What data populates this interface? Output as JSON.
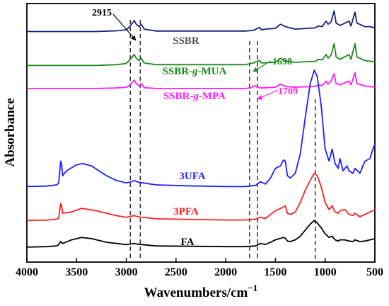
{
  "chart_data": {
    "type": "line",
    "title": "",
    "xlabel": "Wavenumbers/cm",
    "xlabel_sup": "−1",
    "ylabel": "Absorbance",
    "xlim": [
      4000,
      500
    ],
    "x_reversed": true,
    "y_ticks_shown": false,
    "grid": false,
    "x_ticks": [
      4000,
      3500,
      3000,
      2500,
      2000,
      1500,
      1000,
      500
    ],
    "reference_lines": [
      2960,
      2860,
      1760,
      1680,
      1100
    ],
    "annotations": [
      {
        "text": "2915",
        "x": 2915,
        "color": "#000000"
      },
      {
        "text": "1698",
        "x": 1698,
        "color": "#1a8a1a"
      },
      {
        "text": "1709",
        "x": 1709,
        "color": "#ff19ff"
      }
    ],
    "series": [
      {
        "name": "SSBR",
        "color": "#1a1f7a",
        "points": [
          [
            4000,
            0.905
          ],
          [
            3300,
            0.905
          ],
          [
            3100,
            0.908
          ],
          [
            3000,
            0.912
          ],
          [
            2960,
            0.928
          ],
          [
            2920,
            0.95
          ],
          [
            2900,
            0.935
          ],
          [
            2870,
            0.925
          ],
          [
            2850,
            0.935
          ],
          [
            2820,
            0.915
          ],
          [
            2700,
            0.907
          ],
          [
            1800,
            0.907
          ],
          [
            1720,
            0.91
          ],
          [
            1660,
            0.922
          ],
          [
            1640,
            0.912
          ],
          [
            1600,
            0.915
          ],
          [
            1500,
            0.918
          ],
          [
            1450,
            0.935
          ],
          [
            1400,
            0.925
          ],
          [
            1300,
            0.915
          ],
          [
            1100,
            0.92
          ],
          [
            1070,
            0.928
          ],
          [
            1030,
            0.925
          ],
          [
            990,
            0.948
          ],
          [
            970,
            0.935
          ],
          [
            940,
            0.945
          ],
          [
            910,
            0.99
          ],
          [
            890,
            0.94
          ],
          [
            850,
            0.93
          ],
          [
            760,
            0.948
          ],
          [
            740,
            0.928
          ],
          [
            700,
            0.985
          ],
          [
            680,
            0.94
          ],
          [
            600,
            0.925
          ],
          [
            550,
            0.925
          ],
          [
            500,
            0.92
          ]
        ]
      },
      {
        "name": "SSBR-g-MUA",
        "color": "#1a8a1a",
        "points": [
          [
            4000,
            0.765
          ],
          [
            3300,
            0.765
          ],
          [
            3100,
            0.768
          ],
          [
            3000,
            0.773
          ],
          [
            2960,
            0.79
          ],
          [
            2920,
            0.81
          ],
          [
            2900,
            0.795
          ],
          [
            2870,
            0.785
          ],
          [
            2850,
            0.795
          ],
          [
            2820,
            0.775
          ],
          [
            2700,
            0.768
          ],
          [
            1800,
            0.768
          ],
          [
            1720,
            0.775
          ],
          [
            1698,
            0.78
          ],
          [
            1660,
            0.785
          ],
          [
            1640,
            0.775
          ],
          [
            1500,
            0.778
          ],
          [
            1450,
            0.795
          ],
          [
            1400,
            0.783
          ],
          [
            1300,
            0.778
          ],
          [
            1100,
            0.782
          ],
          [
            1070,
            0.79
          ],
          [
            1030,
            0.788
          ],
          [
            990,
            0.81
          ],
          [
            970,
            0.795
          ],
          [
            940,
            0.808
          ],
          [
            910,
            0.855
          ],
          [
            890,
            0.8
          ],
          [
            850,
            0.79
          ],
          [
            760,
            0.81
          ],
          [
            740,
            0.79
          ],
          [
            700,
            0.855
          ],
          [
            680,
            0.8
          ],
          [
            600,
            0.785
          ],
          [
            500,
            0.78
          ]
        ]
      },
      {
        "name": "SSBR-g-MPA",
        "color": "#ff19ff",
        "points": [
          [
            4000,
            0.67
          ],
          [
            3300,
            0.67
          ],
          [
            3100,
            0.672
          ],
          [
            3000,
            0.675
          ],
          [
            2960,
            0.685
          ],
          [
            2920,
            0.705
          ],
          [
            2900,
            0.69
          ],
          [
            2870,
            0.68
          ],
          [
            2850,
            0.69
          ],
          [
            2820,
            0.673
          ],
          [
            2700,
            0.67
          ],
          [
            1800,
            0.67
          ],
          [
            1740,
            0.673
          ],
          [
            1709,
            0.682
          ],
          [
            1680,
            0.675
          ],
          [
            1640,
            0.672
          ],
          [
            1500,
            0.675
          ],
          [
            1450,
            0.688
          ],
          [
            1400,
            0.678
          ],
          [
            1300,
            0.675
          ],
          [
            1100,
            0.678
          ],
          [
            1070,
            0.685
          ],
          [
            1030,
            0.682
          ],
          [
            990,
            0.7
          ],
          [
            970,
            0.688
          ],
          [
            940,
            0.7
          ],
          [
            910,
            0.73
          ],
          [
            890,
            0.69
          ],
          [
            850,
            0.685
          ],
          [
            760,
            0.7
          ],
          [
            740,
            0.685
          ],
          [
            700,
            0.735
          ],
          [
            680,
            0.69
          ],
          [
            600,
            0.68
          ],
          [
            500,
            0.675
          ]
        ]
      },
      {
        "name": "3UFA",
        "color": "#1f1fff",
        "points": [
          [
            4000,
            0.265
          ],
          [
            3800,
            0.267
          ],
          [
            3700,
            0.272
          ],
          [
            3680,
            0.28
          ],
          [
            3660,
            0.37
          ],
          [
            3650,
            0.355
          ],
          [
            3640,
            0.31
          ],
          [
            3600,
            0.33
          ],
          [
            3500,
            0.355
          ],
          [
            3440,
            0.36
          ],
          [
            3350,
            0.35
          ],
          [
            3200,
            0.31
          ],
          [
            3100,
            0.29
          ],
          [
            3000,
            0.28
          ],
          [
            2950,
            0.285
          ],
          [
            2920,
            0.29
          ],
          [
            2880,
            0.283
          ],
          [
            2700,
            0.272
          ],
          [
            2400,
            0.268
          ],
          [
            2000,
            0.265
          ],
          [
            1800,
            0.265
          ],
          [
            1700,
            0.27
          ],
          [
            1650,
            0.285
          ],
          [
            1600,
            0.275
          ],
          [
            1550,
            0.3
          ],
          [
            1500,
            0.34
          ],
          [
            1450,
            0.35
          ],
          [
            1420,
            0.375
          ],
          [
            1400,
            0.37
          ],
          [
            1380,
            0.31
          ],
          [
            1350,
            0.3
          ],
          [
            1300,
            0.32
          ],
          [
            1250,
            0.4
          ],
          [
            1200,
            0.55
          ],
          [
            1150,
            0.69
          ],
          [
            1110,
            0.745
          ],
          [
            1080,
            0.72
          ],
          [
            1040,
            0.6
          ],
          [
            1000,
            0.42
          ],
          [
            960,
            0.37
          ],
          [
            930,
            0.42
          ],
          [
            900,
            0.36
          ],
          [
            870,
            0.34
          ],
          [
            850,
            0.38
          ],
          [
            820,
            0.33
          ],
          [
            780,
            0.35
          ],
          [
            760,
            0.33
          ],
          [
            720,
            0.32
          ],
          [
            700,
            0.34
          ],
          [
            650,
            0.32
          ],
          [
            600,
            0.37
          ],
          [
            550,
            0.38
          ],
          [
            520,
            0.42
          ],
          [
            500,
            0.44
          ]
        ]
      },
      {
        "name": "3PFA",
        "color": "#ff1f1f",
        "points": [
          [
            4000,
            0.125
          ],
          [
            3800,
            0.127
          ],
          [
            3700,
            0.13
          ],
          [
            3680,
            0.135
          ],
          [
            3660,
            0.195
          ],
          [
            3650,
            0.185
          ],
          [
            3640,
            0.155
          ],
          [
            3550,
            0.16
          ],
          [
            3450,
            0.175
          ],
          [
            3300,
            0.165
          ],
          [
            3100,
            0.145
          ],
          [
            3000,
            0.138
          ],
          [
            2950,
            0.142
          ],
          [
            2920,
            0.145
          ],
          [
            2880,
            0.14
          ],
          [
            2700,
            0.132
          ],
          [
            2000,
            0.127
          ],
          [
            1800,
            0.127
          ],
          [
            1700,
            0.13
          ],
          [
            1650,
            0.138
          ],
          [
            1600,
            0.133
          ],
          [
            1550,
            0.15
          ],
          [
            1500,
            0.165
          ],
          [
            1420,
            0.18
          ],
          [
            1400,
            0.185
          ],
          [
            1380,
            0.155
          ],
          [
            1350,
            0.15
          ],
          [
            1300,
            0.16
          ],
          [
            1250,
            0.2
          ],
          [
            1200,
            0.25
          ],
          [
            1150,
            0.29
          ],
          [
            1110,
            0.32
          ],
          [
            1080,
            0.31
          ],
          [
            1040,
            0.265
          ],
          [
            1000,
            0.2
          ],
          [
            960,
            0.17
          ],
          [
            930,
            0.185
          ],
          [
            900,
            0.16
          ],
          [
            870,
            0.155
          ],
          [
            850,
            0.165
          ],
          [
            800,
            0.17
          ],
          [
            760,
            0.15
          ],
          [
            720,
            0.145
          ],
          [
            700,
            0.155
          ],
          [
            650,
            0.14
          ],
          [
            600,
            0.15
          ],
          [
            550,
            0.16
          ],
          [
            500,
            0.17
          ]
        ]
      },
      {
        "name": "FA",
        "color": "#000000",
        "points": [
          [
            4000,
            0.015
          ],
          [
            3800,
            0.017
          ],
          [
            3700,
            0.02
          ],
          [
            3680,
            0.025
          ],
          [
            3660,
            0.038
          ],
          [
            3640,
            0.03
          ],
          [
            3550,
            0.045
          ],
          [
            3450,
            0.055
          ],
          [
            3350,
            0.05
          ],
          [
            3200,
            0.035
          ],
          [
            3100,
            0.03
          ],
          [
            3000,
            0.025
          ],
          [
            2950,
            0.028
          ],
          [
            2920,
            0.03
          ],
          [
            2880,
            0.027
          ],
          [
            2700,
            0.02
          ],
          [
            2000,
            0.017
          ],
          [
            1800,
            0.017
          ],
          [
            1700,
            0.02
          ],
          [
            1650,
            0.03
          ],
          [
            1600,
            0.026
          ],
          [
            1550,
            0.035
          ],
          [
            1500,
            0.045
          ],
          [
            1420,
            0.055
          ],
          [
            1400,
            0.052
          ],
          [
            1380,
            0.04
          ],
          [
            1350,
            0.038
          ],
          [
            1300,
            0.045
          ],
          [
            1250,
            0.06
          ],
          [
            1200,
            0.085
          ],
          [
            1150,
            0.11
          ],
          [
            1110,
            0.125
          ],
          [
            1080,
            0.115
          ],
          [
            1040,
            0.095
          ],
          [
            1000,
            0.07
          ],
          [
            960,
            0.055
          ],
          [
            930,
            0.06
          ],
          [
            900,
            0.045
          ],
          [
            870,
            0.04
          ],
          [
            850,
            0.045
          ],
          [
            800,
            0.045
          ],
          [
            760,
            0.04
          ],
          [
            720,
            0.038
          ],
          [
            700,
            0.045
          ],
          [
            650,
            0.038
          ],
          [
            600,
            0.04
          ],
          [
            550,
            0.045
          ],
          [
            500,
            0.05
          ]
        ]
      }
    ]
  }
}
